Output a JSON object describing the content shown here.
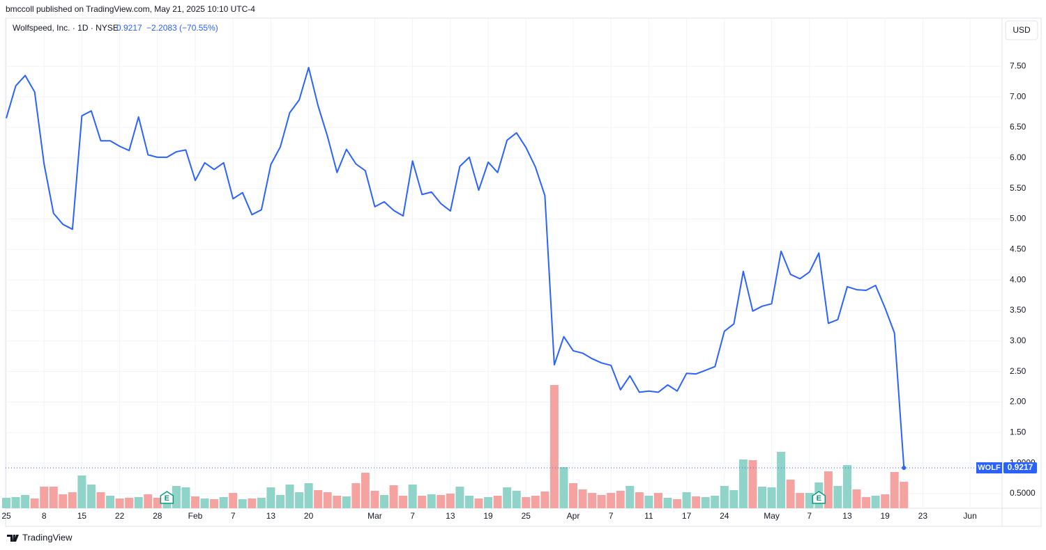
{
  "header": {
    "publisher": "bmccoll published on TradingView.com, May 21, 2025 10:10 UTC-4"
  },
  "chart_data": {
    "type": "line",
    "title": "Wolfspeed, Inc. · 1D · NYSE",
    "change": "−2.2083 (−70.55%)",
    "currency": "USD",
    "x": [
      "25",
      null,
      null,
      null,
      "8",
      null,
      null,
      null,
      "15",
      null,
      null,
      null,
      "22",
      null,
      null,
      null,
      "28",
      null,
      null,
      null,
      "Feb",
      null,
      null,
      null,
      "7",
      null,
      null,
      null,
      "13",
      null,
      null,
      null,
      "20",
      null,
      null,
      null,
      null,
      null,
      null,
      "Mar",
      null,
      null,
      null,
      "7",
      null,
      null,
      null,
      "13",
      null,
      null,
      null,
      "19",
      null,
      null,
      null,
      "25",
      null,
      null,
      null,
      null,
      "Apr",
      null,
      null,
      null,
      "7",
      null,
      null,
      null,
      "11",
      null,
      null,
      null,
      "17",
      null,
      null,
      null,
      "24",
      null,
      null,
      null,
      null,
      "May",
      null,
      null,
      null,
      "7",
      null,
      null,
      null,
      "13",
      null,
      null,
      null,
      "19",
      null,
      null,
      null,
      "23",
      null,
      null,
      null,
      null,
      "Jun"
    ],
    "series": [
      {
        "name": "WOLF",
        "color": "#2962ff",
        "values": [
          6.65,
          7.18,
          7.35,
          7.08,
          5.9,
          5.09,
          4.91,
          4.83,
          6.69,
          6.77,
          6.28,
          6.28,
          6.19,
          6.12,
          6.67,
          6.05,
          6.01,
          6.01,
          6.1,
          6.13,
          5.63,
          5.92,
          5.81,
          5.92,
          5.33,
          5.43,
          5.07,
          5.15,
          5.89,
          6.18,
          6.74,
          6.95,
          7.48,
          6.85,
          6.35,
          5.76,
          6.14,
          5.9,
          5.79,
          5.2,
          5.28,
          5.14,
          5.05,
          5.95,
          5.4,
          5.44,
          5.25,
          5.13,
          5.86,
          6.01,
          5.47,
          5.93,
          5.76,
          6.29,
          6.41,
          6.17,
          5.85,
          5.38,
          2.61,
          3.07,
          2.84,
          2.8,
          2.71,
          2.64,
          2.6,
          2.2,
          2.43,
          2.16,
          2.18,
          2.16,
          2.28,
          2.18,
          2.47,
          2.46,
          2.52,
          2.58,
          3.16,
          3.28,
          4.14,
          3.49,
          3.57,
          3.61,
          4.47,
          4.09,
          4.02,
          4.13,
          4.44,
          3.29,
          3.35,
          3.89,
          3.84,
          3.83,
          3.91,
          3.54,
          3.13,
          0.9217,
          null,
          null,
          null,
          null,
          null,
          null,
          null
        ]
      }
    ],
    "volume": {
      "up_color": "#8fd3c9",
      "down_color": "#f5a3a1",
      "values": [
        15,
        16,
        19,
        14,
        31,
        31,
        20,
        23,
        47,
        34,
        23,
        18,
        14,
        15,
        16,
        20,
        15,
        14,
        32,
        30,
        17,
        14,
        13,
        16,
        22,
        13,
        14,
        15,
        30,
        19,
        34,
        23,
        36,
        26,
        23,
        18,
        17,
        36,
        51,
        25,
        19,
        33,
        18,
        34,
        18,
        20,
        19,
        21,
        31,
        18,
        14,
        16,
        18,
        30,
        25,
        16,
        18,
        24,
        177,
        59,
        36,
        27,
        22,
        19,
        22,
        25,
        32,
        23,
        18,
        22,
        15,
        13,
        23,
        17,
        16,
        18,
        32,
        26,
        70,
        69,
        31,
        30,
        81,
        41,
        22,
        22,
        37,
        53,
        32,
        62,
        27,
        16,
        18,
        20,
        52,
        38,
        null,
        null,
        null,
        null,
        null,
        null,
        null
      ]
    },
    "earnings": [
      {
        "x": 17,
        "label": "E"
      },
      {
        "x": 86,
        "label": "E"
      }
    ],
    "ylim": [
      0.26,
      8.29
    ],
    "yticks": [
      {
        "value": 0.5,
        "label": "0.5000"
      },
      {
        "value": 1,
        "label": "1.0000"
      },
      {
        "value": 1.5,
        "label": "1.50"
      },
      {
        "value": 2,
        "label": "2.00"
      },
      {
        "value": 2.5,
        "label": "2.50"
      },
      {
        "value": 3,
        "label": "3.00"
      },
      {
        "value": 3.5,
        "label": "3.50"
      },
      {
        "value": 4,
        "label": "4.00"
      },
      {
        "value": 4.5,
        "label": "4.50"
      },
      {
        "value": 5,
        "label": "5.00"
      },
      {
        "value": 5.5,
        "label": "5.50"
      },
      {
        "value": 6,
        "label": "6.00"
      },
      {
        "value": 6.5,
        "label": "6.50"
      },
      {
        "value": 7,
        "label": "7.00"
      },
      {
        "value": 7.5,
        "label": "7.50"
      }
    ],
    "grid": true
  },
  "footer": {
    "brand": "TradingView"
  }
}
